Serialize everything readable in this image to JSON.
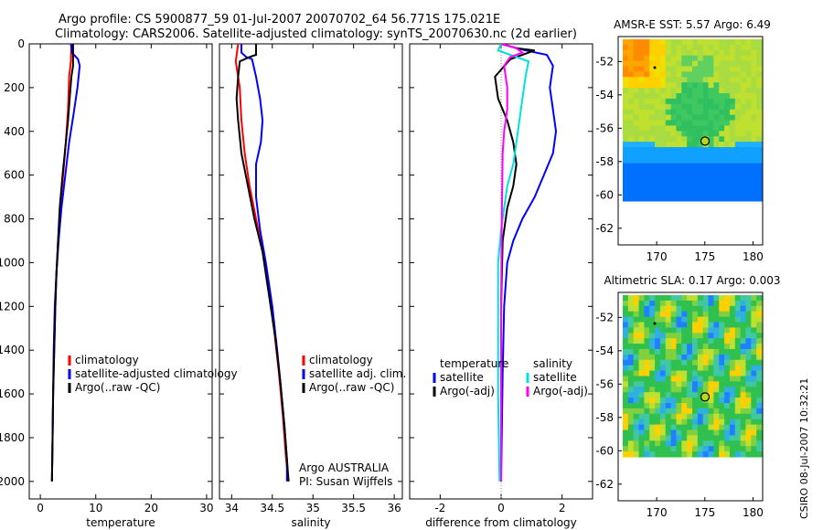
{
  "header": {
    "line1": "Argo profile: CS 5900877_59 01-Jul-2007 20070702_64 56.771S 175.021E",
    "line2": "Climatology: CARS2006. Satellite-adjusted climatology: synTS_20070630.nc (2d earlier)"
  },
  "colors": {
    "climatology": "#ff0000",
    "satellite": "#0000ff",
    "argo": "#000000",
    "satellite_diff": "#00e0e0",
    "argo_diff": "#ff00ff"
  },
  "depth_ticks": [
    "0",
    "200",
    "400",
    "600",
    "800",
    "1000",
    "1200",
    "1400",
    "1600",
    "1800",
    "2000"
  ],
  "chart_data": [
    {
      "type": "line",
      "name": "temperature-panel",
      "xlabel": "temperature",
      "xlim": [
        -2,
        31
      ],
      "ylim": [
        2080,
        0
      ],
      "x_ticks": [
        "0",
        "10",
        "20",
        "30"
      ],
      "legend": [
        "climatology",
        "satellite-adjusted climatology",
        "Argo(..raw -QC)"
      ],
      "series": [
        {
          "name": "climatology",
          "color": "#ff0000",
          "points": [
            [
              5.6,
              0
            ],
            [
              5.5,
              80
            ],
            [
              5.2,
              150
            ],
            [
              5.0,
              300
            ],
            [
              4.6,
              450
            ],
            [
              4.1,
              600
            ],
            [
              3.6,
              750
            ],
            [
              3.2,
              900
            ],
            [
              2.9,
              1050
            ],
            [
              2.7,
              1200
            ],
            [
              2.5,
              1400
            ],
            [
              2.3,
              1600
            ],
            [
              2.2,
              1800
            ],
            [
              2.1,
              2000
            ]
          ]
        },
        {
          "name": "satellite-adjusted climatology",
          "color": "#0000ff",
          "points": [
            [
              5.5,
              0
            ],
            [
              5.7,
              40
            ],
            [
              6.8,
              70
            ],
            [
              7.1,
              100
            ],
            [
              6.7,
              200
            ],
            [
              6.0,
              320
            ],
            [
              5.2,
              450
            ],
            [
              4.5,
              600
            ],
            [
              3.8,
              750
            ],
            [
              3.3,
              900
            ],
            [
              2.9,
              1050
            ],
            [
              2.6,
              1200
            ],
            [
              2.4,
              1400
            ],
            [
              2.3,
              1600
            ],
            [
              2.2,
              1800
            ],
            [
              2.1,
              2000
            ]
          ]
        },
        {
          "name": "Argo(..raw -QC)",
          "color": "#000000",
          "points": [
            [
              5.9,
              0
            ],
            [
              5.9,
              100
            ],
            [
              5.6,
              150
            ],
            [
              5.3,
              250
            ],
            [
              5.0,
              350
            ],
            [
              4.6,
              450
            ],
            [
              4.0,
              600
            ],
            [
              3.5,
              750
            ],
            [
              3.2,
              900
            ],
            [
              2.9,
              1050
            ],
            [
              2.7,
              1200
            ],
            [
              2.5,
              1400
            ],
            [
              2.3,
              1600
            ],
            [
              2.2,
              1800
            ],
            [
              2.1,
              2000
            ]
          ]
        }
      ]
    },
    {
      "type": "line",
      "name": "salinity-panel",
      "xlabel": "salinity",
      "xlim": [
        33.85,
        36.1
      ],
      "ylim": [
        2080,
        0
      ],
      "x_ticks": [
        "34",
        "34.5",
        "35",
        "35.5",
        "36"
      ],
      "legend": [
        "climatology",
        "satellite adj. clim.",
        "Argo(..raw -QC)"
      ],
      "annotation": [
        "Argo AUSTRALIA",
        "PI: Susan Wijffels"
      ],
      "series": [
        {
          "name": "climatology",
          "color": "#ff0000",
          "points": [
            [
              34.08,
              0
            ],
            [
              34.05,
              80
            ],
            [
              34.1,
              200
            ],
            [
              34.12,
              350
            ],
            [
              34.16,
              500
            ],
            [
              34.22,
              650
            ],
            [
              34.3,
              800
            ],
            [
              34.38,
              950
            ],
            [
              34.45,
              1100
            ],
            [
              34.52,
              1300
            ],
            [
              34.58,
              1500
            ],
            [
              34.63,
              1700
            ],
            [
              34.67,
              1900
            ],
            [
              34.7,
              2000
            ]
          ]
        },
        {
          "name": "satellite adj. clim.",
          "color": "#0000ff",
          "points": [
            [
              34.12,
              0
            ],
            [
              34.12,
              40
            ],
            [
              34.18,
              60
            ],
            [
              34.25,
              70
            ],
            [
              34.3,
              150
            ],
            [
              34.35,
              250
            ],
            [
              34.38,
              350
            ],
            [
              34.36,
              450
            ],
            [
              34.3,
              550
            ],
            [
              34.3,
              700
            ],
            [
              34.35,
              850
            ],
            [
              34.42,
              1000
            ],
            [
              34.5,
              1200
            ],
            [
              34.56,
              1400
            ],
            [
              34.6,
              1550
            ],
            [
              34.65,
              1750
            ],
            [
              34.68,
              1900
            ],
            [
              34.68,
              2000
            ]
          ]
        },
        {
          "name": "Argo(..raw -QC)",
          "color": "#000000",
          "points": [
            [
              34.3,
              0
            ],
            [
              34.3,
              50
            ],
            [
              34.22,
              60
            ],
            [
              34.1,
              80
            ],
            [
              34.08,
              150
            ],
            [
              34.06,
              250
            ],
            [
              34.08,
              350
            ],
            [
              34.12,
              500
            ],
            [
              34.2,
              650
            ],
            [
              34.28,
              800
            ],
            [
              34.38,
              950
            ],
            [
              34.46,
              1150
            ],
            [
              34.54,
              1350
            ],
            [
              34.6,
              1550
            ],
            [
              34.65,
              1750
            ],
            [
              34.68,
              1900
            ],
            [
              34.7,
              2000
            ]
          ]
        }
      ]
    },
    {
      "type": "line",
      "name": "difference-panel",
      "xlabel": "difference from climatology",
      "xlim": [
        -3,
        3
      ],
      "ylim": [
        2080,
        0
      ],
      "x_ticks": [
        "-2",
        "0",
        "2"
      ],
      "legend_left": [
        "temperature",
        "satellite",
        "Argo(-adj)"
      ],
      "legend_right": [
        "salinity",
        "satellite",
        "Argo(-adj)"
      ],
      "series": [
        {
          "name": "temperature satellite",
          "color": "#0000ff",
          "points": [
            [
              0,
              0
            ],
            [
              0.8,
              30
            ],
            [
              1.5,
              50
            ],
            [
              1.7,
              100
            ],
            [
              1.6,
              200
            ],
            [
              1.7,
              300
            ],
            [
              1.8,
              400
            ],
            [
              1.7,
              500
            ],
            [
              1.4,
              600
            ],
            [
              1.1,
              700
            ],
            [
              0.7,
              800
            ],
            [
              0.4,
              900
            ],
            [
              0.2,
              1000
            ],
            [
              0.1,
              1200
            ],
            [
              0.05,
              1500
            ],
            [
              0,
              2000
            ]
          ]
        },
        {
          "name": "temperature Argo(-adj)",
          "color": "#000000",
          "points": [
            [
              0,
              0
            ],
            [
              0.5,
              20
            ],
            [
              1.1,
              30
            ],
            [
              0.3,
              70
            ],
            [
              -0.2,
              150
            ],
            [
              -0.1,
              250
            ],
            [
              0.2,
              350
            ],
            [
              0.4,
              450
            ],
            [
              0.5,
              550
            ],
            [
              0.4,
              650
            ],
            [
              0.2,
              750
            ],
            [
              0.05,
              900
            ],
            [
              0,
              1200
            ],
            [
              0,
              2000
            ]
          ]
        },
        {
          "name": "salinity satellite",
          "color": "#00e0e0",
          "points": [
            [
              0,
              0
            ],
            [
              -0.1,
              30
            ],
            [
              0.3,
              50
            ],
            [
              0.9,
              80
            ],
            [
              0.8,
              150
            ],
            [
              0.7,
              250
            ],
            [
              0.6,
              350
            ],
            [
              0.5,
              450
            ],
            [
              0.4,
              550
            ],
            [
              0.2,
              650
            ],
            [
              0.1,
              750
            ],
            [
              0,
              850
            ],
            [
              -0.1,
              1000
            ],
            [
              -0.1,
              1200
            ],
            [
              -0.1,
              1600
            ],
            [
              -0.05,
              2000
            ]
          ]
        },
        {
          "name": "salinity Argo(-adj)",
          "color": "#ff00ff",
          "points": [
            [
              0,
              0
            ],
            [
              0.5,
              20
            ],
            [
              0.7,
              40
            ],
            [
              0.3,
              60
            ],
            [
              0.1,
              100
            ],
            [
              0.2,
              200
            ],
            [
              0.2,
              300
            ],
            [
              0.1,
              400
            ],
            [
              0.05,
              500
            ],
            [
              0.02,
              800
            ],
            [
              0,
              1200
            ],
            [
              0,
              2000
            ]
          ]
        }
      ]
    },
    {
      "type": "heatmap",
      "name": "amsre-sst-map",
      "title": "AMSR-E SST: 5.57 Argo: 6.49",
      "xlim": [
        166,
        181
      ],
      "ylim": [
        -63,
        -50.5
      ],
      "x_ticks": [
        "170",
        "175",
        "180"
      ],
      "y_ticks": [
        "-52",
        "-54",
        "-56",
        "-58",
        "-60",
        "-62"
      ],
      "argo_position": [
        175.02,
        -56.77
      ]
    },
    {
      "type": "heatmap",
      "name": "altimetric-sla-map",
      "title": "Altimetric SLA: 0.17 Argo: 0.003",
      "xlim": [
        166,
        181
      ],
      "ylim": [
        -63,
        -50.5
      ],
      "x_ticks": [
        "170",
        "175",
        "180"
      ],
      "y_ticks": [
        "-52",
        "-54",
        "-56",
        "-58",
        "-60",
        "-62"
      ],
      "argo_position": [
        175.02,
        -56.77
      ]
    }
  ],
  "footer": {
    "stamp": "CSIRO 08-Jul-2007 10:32:21"
  }
}
